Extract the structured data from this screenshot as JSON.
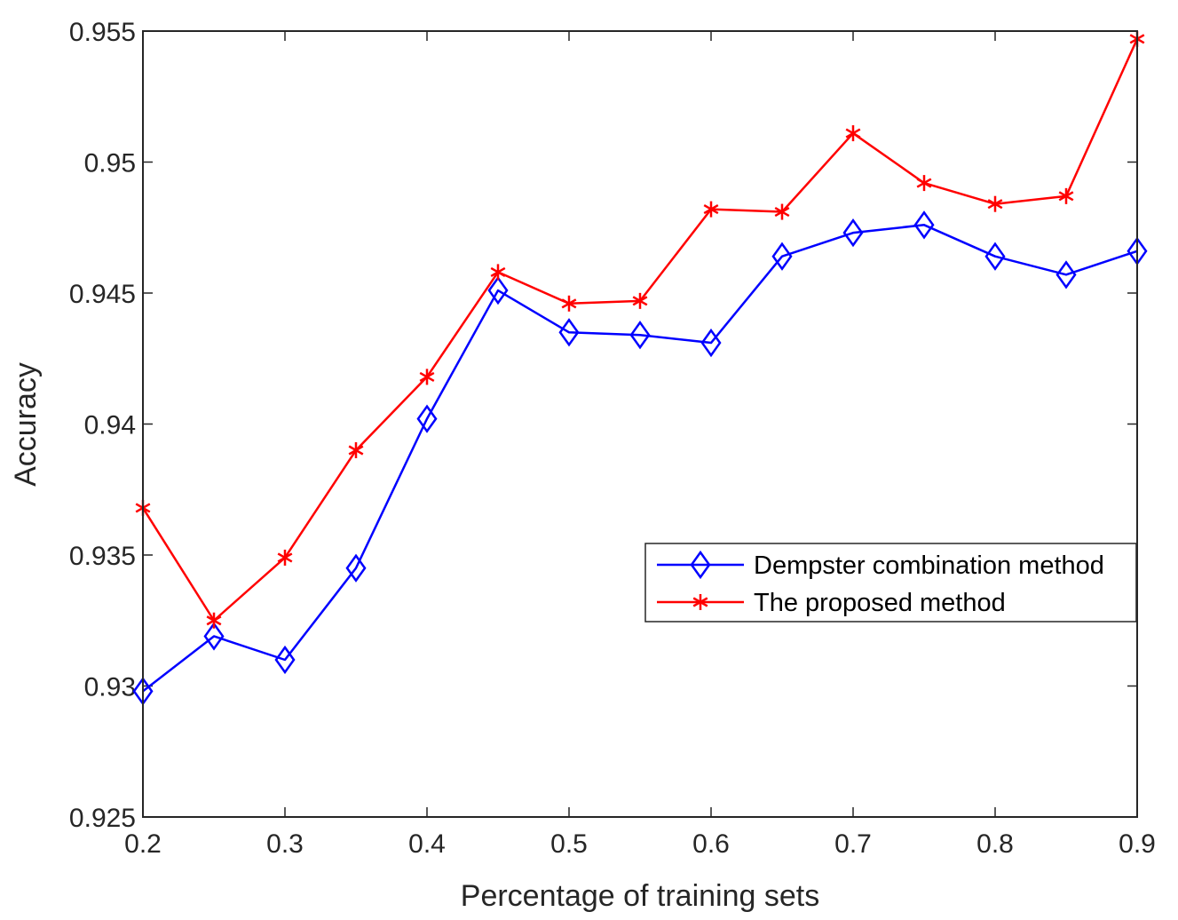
{
  "chart_data": {
    "type": "line",
    "title": "",
    "xlabel": "Percentage of training sets",
    "ylabel": "Accuracy",
    "xlim": [
      0.2,
      0.9
    ],
    "ylim": [
      0.925,
      0.955
    ],
    "grid": false,
    "legend_position": "middle-right",
    "x_ticks": [
      "0.2",
      "0.3",
      "0.4",
      "0.5",
      "0.6",
      "0.7",
      "0.8",
      "0.9"
    ],
    "y_ticks": [
      "0.925",
      "0.93",
      "0.935",
      "0.94",
      "0.945",
      "0.95",
      "0.955"
    ],
    "x": [
      0.2,
      0.25,
      0.3,
      0.35,
      0.4,
      0.45,
      0.5,
      0.55,
      0.6,
      0.65,
      0.7,
      0.75,
      0.8,
      0.85,
      0.9
    ],
    "series": [
      {
        "name": "Dempster combination method",
        "color": "#0000ff",
        "marker": "diamond",
        "values": [
          0.9298,
          0.9319,
          0.931,
          0.9345,
          0.9402,
          0.9451,
          0.9435,
          0.9434,
          0.9431,
          0.9464,
          0.9473,
          0.9476,
          0.9464,
          0.9457,
          0.9466
        ]
      },
      {
        "name": "The proposed method",
        "color": "#ff0000",
        "marker": "asterisk",
        "values": [
          0.9368,
          0.9325,
          0.9349,
          0.939,
          0.9418,
          0.9458,
          0.9446,
          0.9447,
          0.9482,
          0.9481,
          0.9511,
          0.9492,
          0.9484,
          0.9487,
          0.9547
        ]
      }
    ]
  }
}
